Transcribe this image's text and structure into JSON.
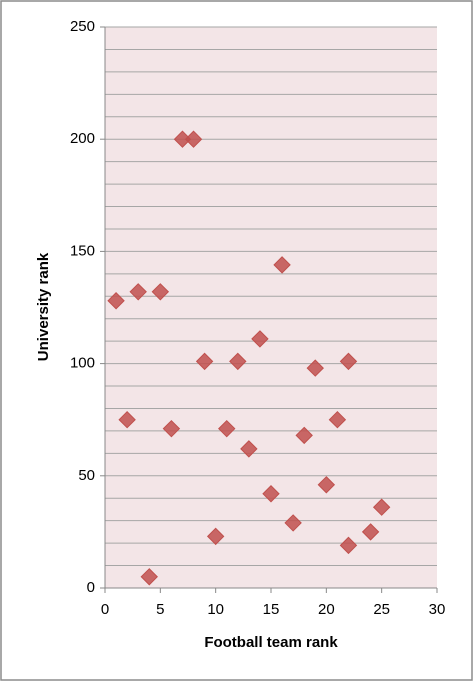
{
  "chart_data": {
    "type": "scatter",
    "xlabel": "Football team rank",
    "ylabel": "University rank",
    "xlim": [
      0,
      30
    ],
    "xticks": [
      0,
      5,
      10,
      15,
      20,
      25,
      30
    ],
    "ylim": [
      0,
      250
    ],
    "yticks": [
      0,
      50,
      100,
      150,
      200,
      250
    ],
    "yminorticks": [
      10,
      20,
      30,
      40,
      60,
      70,
      80,
      90,
      110,
      120,
      130,
      140,
      160,
      170,
      180,
      190,
      210,
      220,
      230,
      240
    ],
    "grid": true,
    "plot_background": "#f3e5e7",
    "color": "#c0504d",
    "series": [
      {
        "name": null,
        "color": "#c0504d",
        "x": [
          1,
          2,
          3,
          4,
          5,
          6,
          7,
          8,
          9,
          10,
          11,
          12,
          13,
          14,
          15,
          16,
          17,
          18,
          19,
          20,
          21,
          22,
          22,
          24,
          25
        ],
        "values": [
          128,
          75,
          132,
          5,
          132,
          71,
          200,
          200,
          101,
          23,
          71,
          101,
          62,
          111,
          42,
          144,
          29,
          68,
          98,
          46,
          75,
          101,
          19,
          25,
          36
        ]
      }
    ]
  }
}
